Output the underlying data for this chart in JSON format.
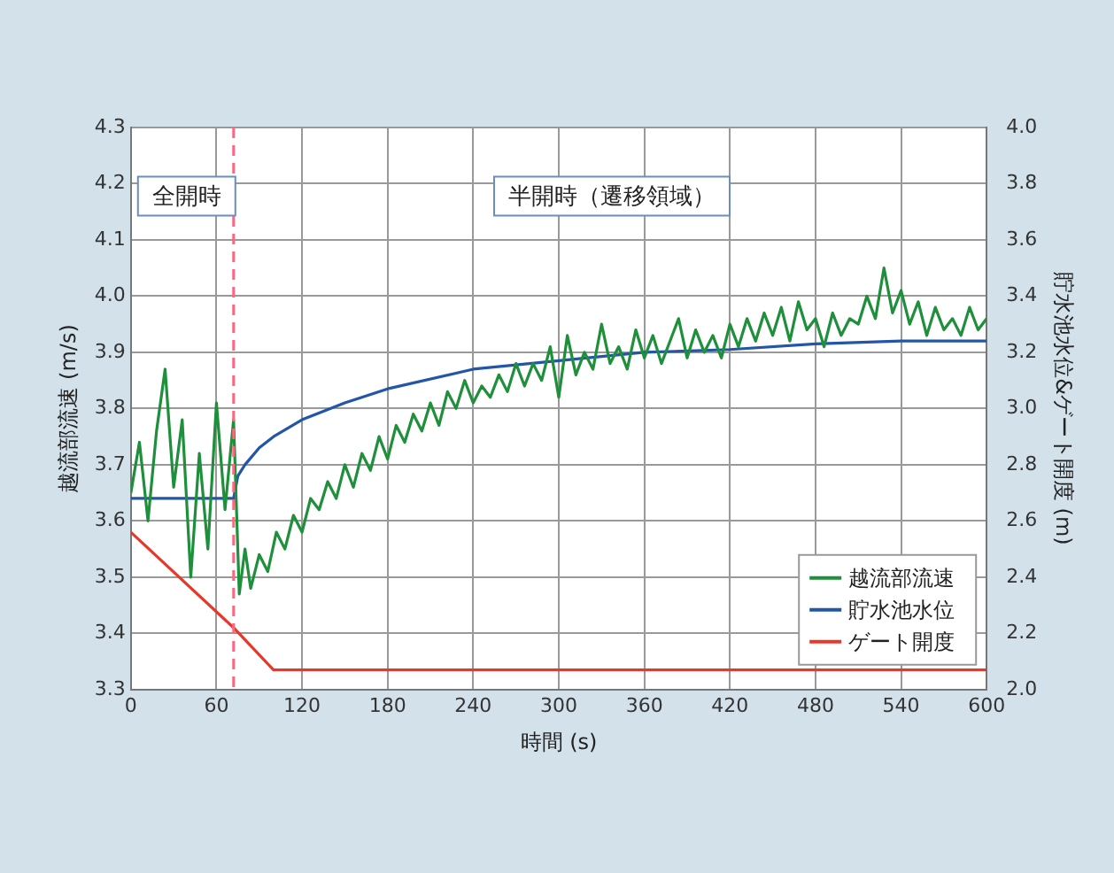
{
  "chart_data": {
    "type": "line",
    "xlabel": "時間 (s)",
    "ylabel": "越流部流速 (m/s)",
    "y2label": "貯水池水位&ゲート開度 (m)",
    "xlim": [
      0,
      600
    ],
    "xticks": [
      0,
      60,
      120,
      180,
      240,
      300,
      360,
      420,
      480,
      540,
      600
    ],
    "ylim": [
      3.3,
      4.3
    ],
    "yticks": [
      3.3,
      3.4,
      3.5,
      3.6,
      3.7,
      3.8,
      3.9,
      {
        "value": 4,
        "label": "4.0"
      },
      4.1,
      4.2,
      4.3
    ],
    "y2lim": [
      2,
      4
    ],
    "y2ticks": [
      {
        "value": 2,
        "label": "2.0"
      },
      2.2,
      2.4,
      2.6,
      2.8,
      {
        "value": 3,
        "label": "3.0"
      },
      3.2,
      3.4,
      3.6,
      3.8,
      {
        "value": 4,
        "label": "4.0"
      }
    ],
    "grid": true,
    "legend": "bottom right",
    "marker": "none",
    "line_style": "solid",
    "annotations": [
      "全開時",
      "半開時（遷移領域）"
    ],
    "ref_lines": [
      {
        "axis": "x",
        "value": 72,
        "label": null,
        "color": "#ff6680",
        "line_style": "dashed"
      }
    ],
    "series": [
      {
        "name": "越流部流速",
        "color": "#1e8f3a",
        "x": [
          0,
          6,
          12,
          18,
          24,
          30,
          36,
          42,
          48,
          54,
          60,
          66,
          72,
          76,
          80,
          84,
          90,
          96,
          102,
          108,
          114,
          120,
          126,
          132,
          138,
          144,
          150,
          156,
          162,
          168,
          174,
          180,
          186,
          192,
          198,
          204,
          210,
          216,
          222,
          228,
          234,
          240,
          246,
          252,
          258,
          264,
          270,
          276,
          282,
          288,
          294,
          300,
          306,
          312,
          318,
          324,
          330,
          336,
          342,
          348,
          354,
          360,
          366,
          372,
          378,
          384,
          390,
          396,
          402,
          408,
          414,
          420,
          426,
          432,
          438,
          444,
          450,
          456,
          462,
          468,
          474,
          480,
          486,
          492,
          498,
          504,
          510,
          516,
          522,
          528,
          534,
          540,
          546,
          552,
          558,
          564,
          570,
          576,
          582,
          588,
          594,
          600
        ],
        "values": [
          3.65,
          3.74,
          3.6,
          3.76,
          3.87,
          3.66,
          3.78,
          3.5,
          3.72,
          3.55,
          3.81,
          3.62,
          3.78,
          3.47,
          3.55,
          3.48,
          3.54,
          3.51,
          3.58,
          3.55,
          3.61,
          3.58,
          3.64,
          3.62,
          3.67,
          3.64,
          3.7,
          3.66,
          3.72,
          3.69,
          3.75,
          3.71,
          3.77,
          3.74,
          3.79,
          3.76,
          3.81,
          3.77,
          3.83,
          3.8,
          3.85,
          3.81,
          3.84,
          3.82,
          3.86,
          3.83,
          3.88,
          3.84,
          3.88,
          3.85,
          3.91,
          3.82,
          3.93,
          3.86,
          3.9,
          3.87,
          3.95,
          3.88,
          3.91,
          3.87,
          3.94,
          3.89,
          3.93,
          3.88,
          3.92,
          3.96,
          3.89,
          3.94,
          3.9,
          3.93,
          3.89,
          3.95,
          3.91,
          3.96,
          3.92,
          3.97,
          3.93,
          3.98,
          3.92,
          3.99,
          3.94,
          3.96,
          3.91,
          3.97,
          3.93,
          3.96,
          3.95,
          4.0,
          3.96,
          4.05,
          3.97,
          4.01,
          3.95,
          3.99,
          3.93,
          3.98,
          3.94,
          3.96,
          3.93,
          3.98,
          3.94,
          3.96
        ]
      },
      {
        "name": "貯水池水位",
        "color": "#2456a8",
        "axis": "y2",
        "x": [
          0,
          72,
          75,
          80,
          90,
          100,
          120,
          150,
          180,
          240,
          300,
          360,
          420,
          480,
          540,
          600
        ],
        "values": [
          2.68,
          2.68,
          2.76,
          2.8,
          2.86,
          2.9,
          2.96,
          3.02,
          3.07,
          3.14,
          3.17,
          3.2,
          3.21,
          3.23,
          3.24,
          3.24
        ]
      },
      {
        "name": "ゲート開度",
        "color": "#e8382a",
        "axis": "y2",
        "x": [
          0,
          72,
          100,
          600
        ],
        "values": [
          2.56,
          2.22,
          2.07,
          2.07
        ]
      }
    ]
  }
}
